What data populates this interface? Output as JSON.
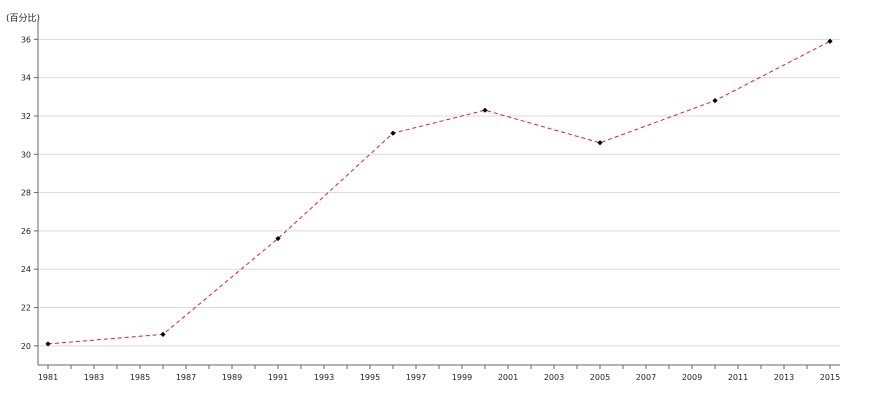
{
  "chart_data": {
    "type": "line",
    "ylabel": "(百分比)",
    "x": [
      1981,
      1986,
      1991,
      1996,
      2000,
      2005,
      2010,
      2015
    ],
    "series": [
      {
        "values": [
          20.1,
          20.6,
          25.6,
          31.1,
          32.3,
          30.6,
          32.8,
          35.9
        ],
        "color": "#d61f3d",
        "marker_color": "#000000",
        "line_style": "dashed"
      }
    ],
    "x_ticks": [
      "1981",
      "1983",
      "1985",
      "1987",
      "1989",
      "1991",
      "1993",
      "1995",
      "1997",
      "1999",
      "2001",
      "2003",
      "2005",
      "2007",
      "2009",
      "2011",
      "2013",
      "2015"
    ],
    "y_ticks": [
      "20",
      "22",
      "24",
      "26",
      "28",
      "30",
      "32",
      "34",
      "36"
    ],
    "xlim": [
      1981,
      2015
    ],
    "ylim": [
      19,
      36.8
    ],
    "grid": true,
    "grid_color": "#d9d9d9",
    "axis_color": "#666666"
  }
}
